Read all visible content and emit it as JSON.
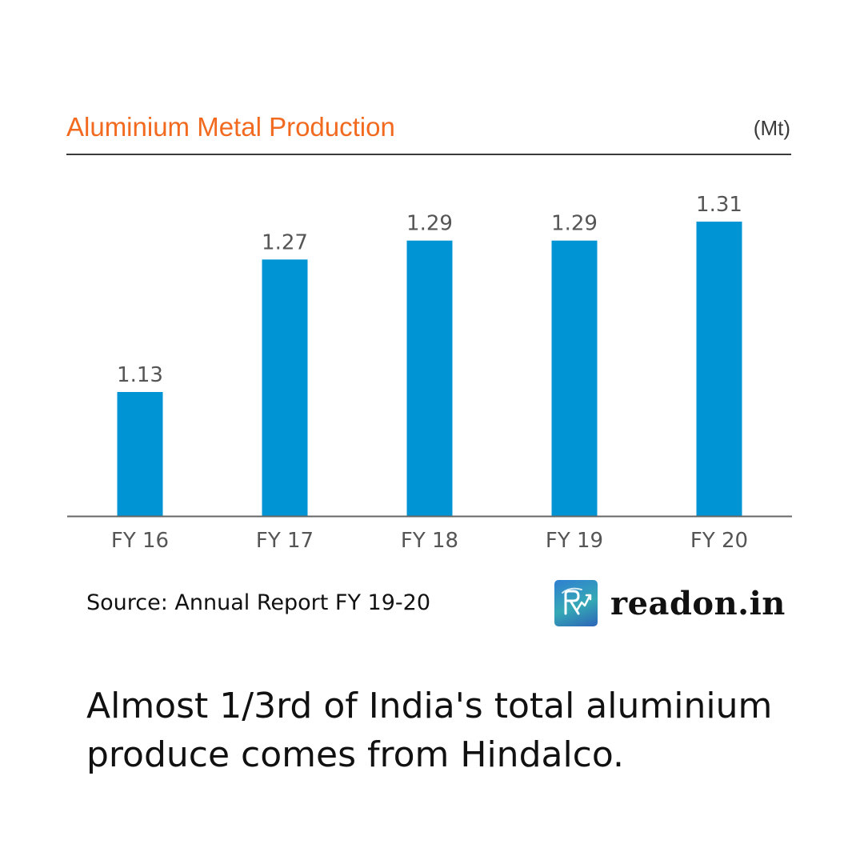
{
  "chart_data": {
    "type": "bar",
    "title": "Aluminium Metal Production",
    "unit": "(Mt)",
    "categories": [
      "FY 16",
      "FY 17",
      "FY 18",
      "FY 19",
      "FY 20"
    ],
    "values": [
      1.13,
      1.27,
      1.29,
      1.29,
      1.31
    ],
    "data_labels": [
      "1.13",
      "1.27",
      "1.29",
      "1.29",
      "1.31"
    ],
    "grid": false,
    "legend": "none",
    "colors": {
      "bar": "#0094d4",
      "title": "#f26a1f",
      "axis": "#555555",
      "label": "#555555"
    }
  },
  "source": "Source: Annual Report FY 19-20",
  "brand": {
    "name": "readon.in",
    "logo_icon": "readon-logo-icon"
  },
  "caption": "Almost 1/3rd of India's total aluminium produce comes from Hindalco."
}
